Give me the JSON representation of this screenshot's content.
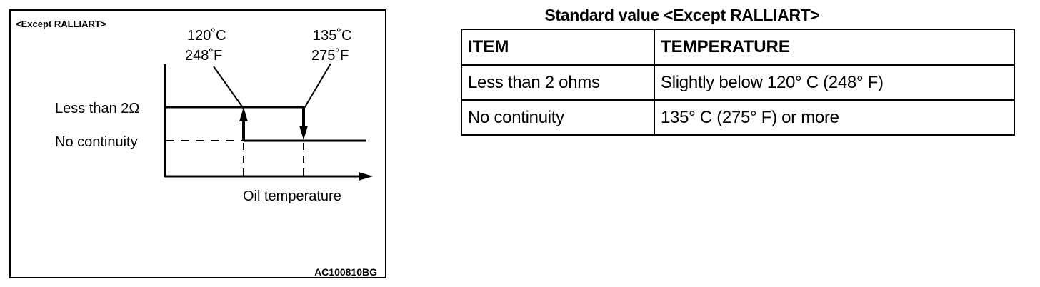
{
  "figure": {
    "variant_label": "<Except RALLIART>",
    "temp_low_c": "120˚C",
    "temp_low_f": "248˚F",
    "temp_high_c": "135˚C",
    "temp_high_f": "275˚F",
    "level_high": "Less than 2Ω",
    "level_low": "No continuity",
    "x_axis_label": "Oil temperature",
    "figure_code": "AC100810BG"
  },
  "table": {
    "title": "Standard value <Except RALLIART>",
    "headers": [
      "ITEM",
      "TEMPERATURE"
    ],
    "rows": [
      [
        "Less than 2 ohms",
        "Slightly below 120° C (248° F)"
      ],
      [
        "No continuity",
        "135° C (275° F) or more"
      ]
    ]
  }
}
